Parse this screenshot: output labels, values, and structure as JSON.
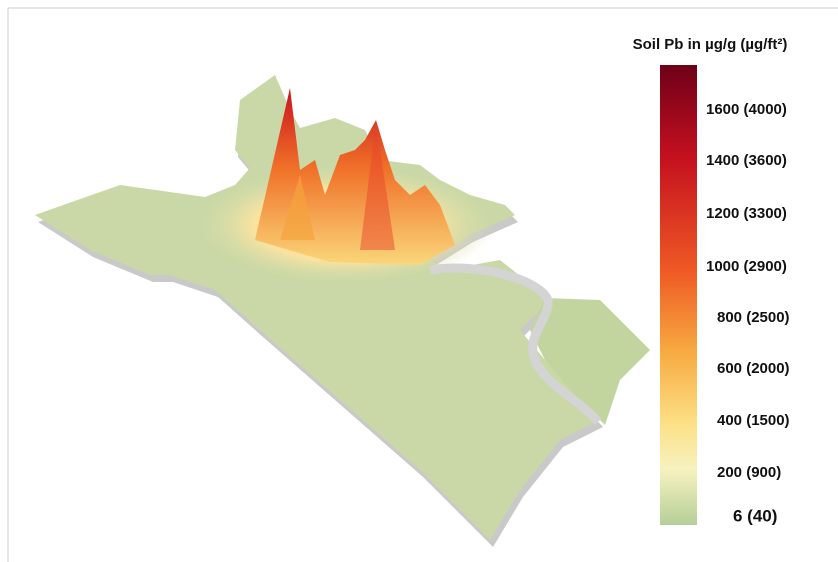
{
  "legend": {
    "title": "Soil Pb in µg/g (µg/ft²)",
    "labels": [
      "1600 (4000)",
      "1400 (3600)",
      "1200 (3300)",
      "1000 (2900)",
      "800 (2500)",
      "600 (2000)",
      "400 (1500)",
      "200 (900)",
      "6 (40)"
    ]
  }
}
